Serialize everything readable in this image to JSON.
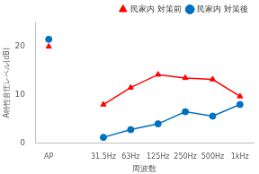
{
  "chart_data": {
    "type": "line",
    "x_label": "周波数",
    "y_label": "A特性音圧レベル(dB)",
    "categories": [
      "AP",
      null,
      "31.5Hz",
      "63Hz",
      "125Hz",
      "250Hz",
      "500Hz",
      "1kHz"
    ],
    "series": [
      {
        "name": "民家内 対策前",
        "color": "#ff0000",
        "marker": "triangle",
        "line_style": "solid",
        "values": [
          20,
          null,
          8,
          11.5,
          14.2,
          13.5,
          13.2,
          9.7
        ]
      },
      {
        "name": "民家内 対策後",
        "color": "#0070c0",
        "marker": "circle",
        "line_style": "solid",
        "values": [
          21.5,
          null,
          1.2,
          2.8,
          4,
          6.5,
          5.6,
          8
        ]
      }
    ],
    "ylim": [
      0,
      25
    ],
    "yticks": [
      0,
      10,
      20
    ],
    "grid": false,
    "legend": "upper right"
  }
}
